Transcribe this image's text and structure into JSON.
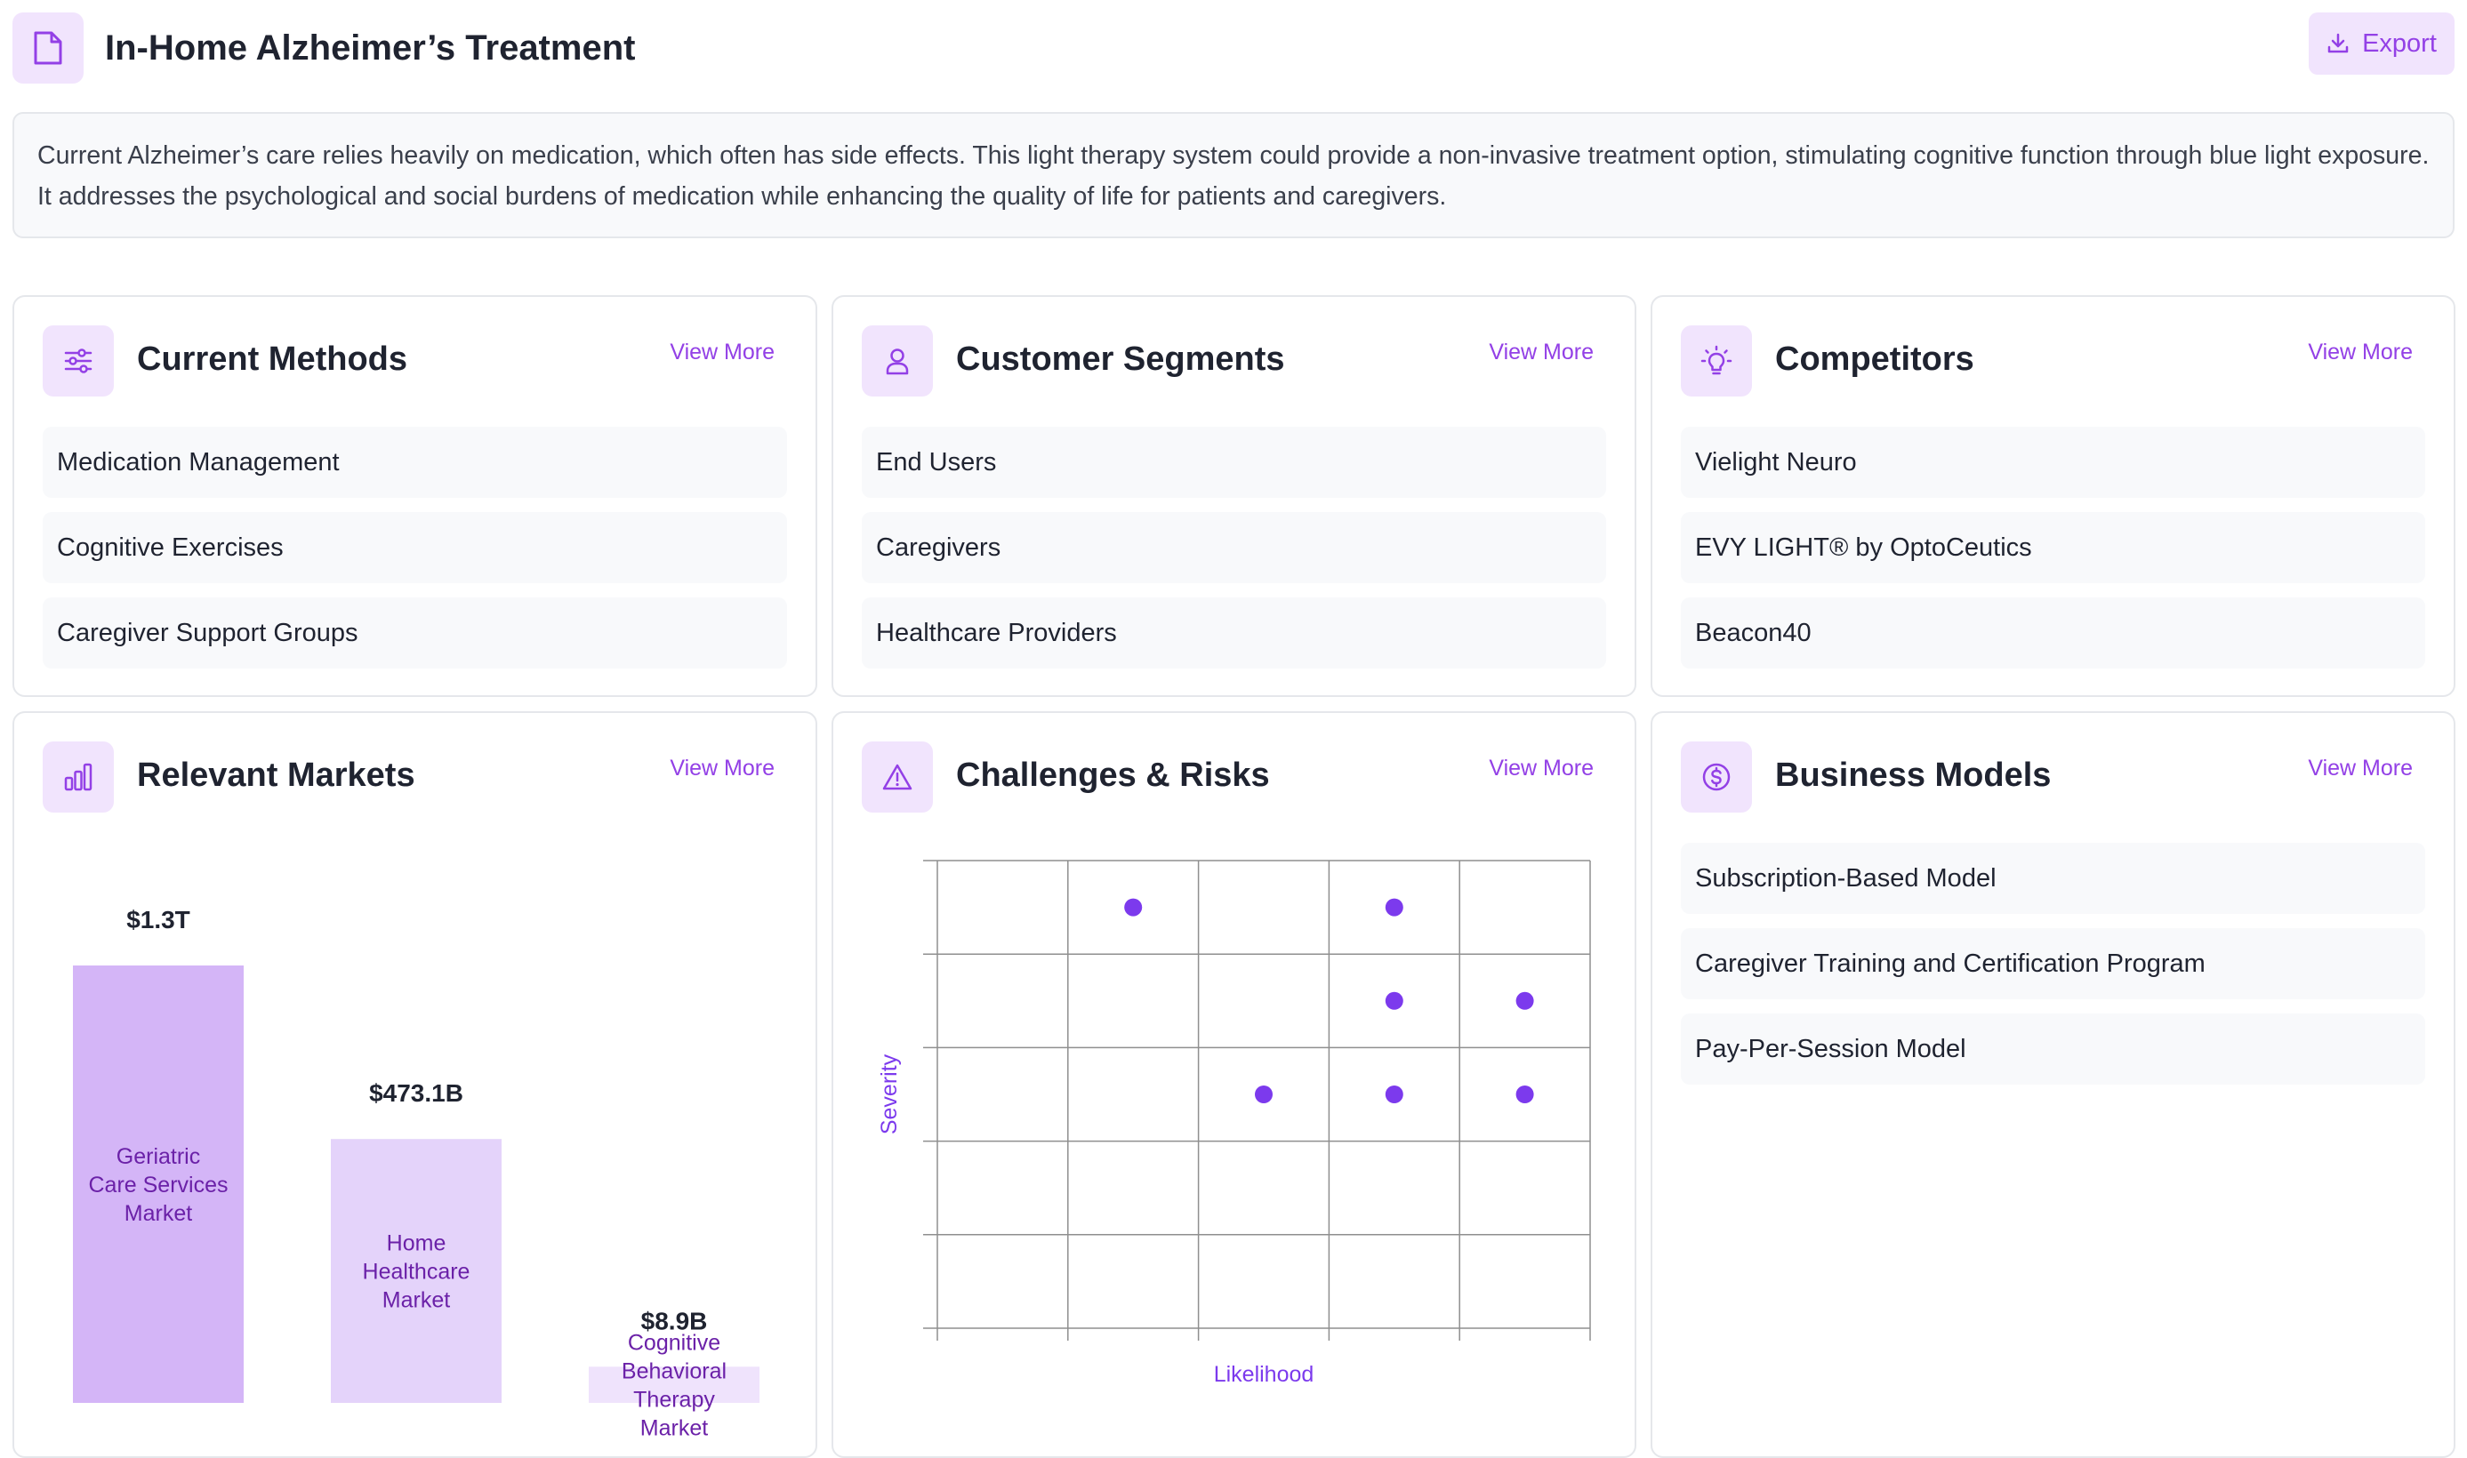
{
  "header": {
    "title": "In-Home Alzheimer’s Treatment",
    "export_label": "Export",
    "accent": "#9340e6",
    "icon": "document-icon"
  },
  "description": "Current Alzheimer’s care relies heavily on medication, which often has side effects. This light therapy system could provide a non-invasive treatment option, stimulating cognitive function through blue light exposure. It addresses the psychological and social burdens of medication while enhancing the quality of life for patients and caregivers.",
  "cards": {
    "current_methods": {
      "title": "Current Methods",
      "view_more": "View More",
      "icon": "sliders-icon",
      "items": [
        "Medication Management",
        "Cognitive Exercises",
        "Caregiver Support Groups"
      ]
    },
    "customer_segments": {
      "title": "Customer Segments",
      "view_more": "View More",
      "icon": "user-icon",
      "items": [
        "End Users",
        "Caregivers",
        "Healthcare Providers"
      ]
    },
    "competitors": {
      "title": "Competitors",
      "view_more": "View More",
      "icon": "lightbulb-icon",
      "items": [
        "Vielight Neuro",
        "EVY LIGHT® by OptoCeutics",
        "Beacon40"
      ]
    },
    "relevant_markets": {
      "title": "Relevant Markets",
      "view_more": "View More",
      "icon": "bar-chart-icon"
    },
    "challenges": {
      "title": "Challenges & Risks",
      "view_more": "View More",
      "icon": "warning-icon"
    },
    "business_models": {
      "title": "Business Models",
      "view_more": "View More",
      "icon": "dollar-circle-icon",
      "items": [
        "Subscription-Based Model",
        "Caregiver Training and Certification Program",
        "Pay-Per-Session Model"
      ]
    }
  },
  "chart_data": [
    {
      "type": "bar",
      "categories": [
        "Geriatric Care Services Market",
        "Home Healthcare Market",
        "Cognitive Behavioral Therapy Market"
      ],
      "values": [
        1300,
        473.1,
        8.9
      ],
      "value_labels": [
        "$1.3T",
        "$473.1B",
        "$8.9B"
      ],
      "unit": "billion USD",
      "colors": [
        "#d4b5f7",
        "#e4d3fa",
        "#efe3fc"
      ],
      "label_color": "#6b21a8"
    },
    {
      "type": "scatter",
      "xlabel": "Likelihood",
      "ylabel": "Severity",
      "xlim": [
        0,
        5
      ],
      "ylim": [
        0,
        5
      ],
      "grid": true,
      "point_color": "#7c3aed",
      "points": [
        {
          "x": 2,
          "y": 5
        },
        {
          "x": 4,
          "y": 5
        },
        {
          "x": 4,
          "y": 4
        },
        {
          "x": 5,
          "y": 4
        },
        {
          "x": 3,
          "y": 3
        },
        {
          "x": 4,
          "y": 3
        },
        {
          "x": 5,
          "y": 3
        }
      ]
    }
  ]
}
